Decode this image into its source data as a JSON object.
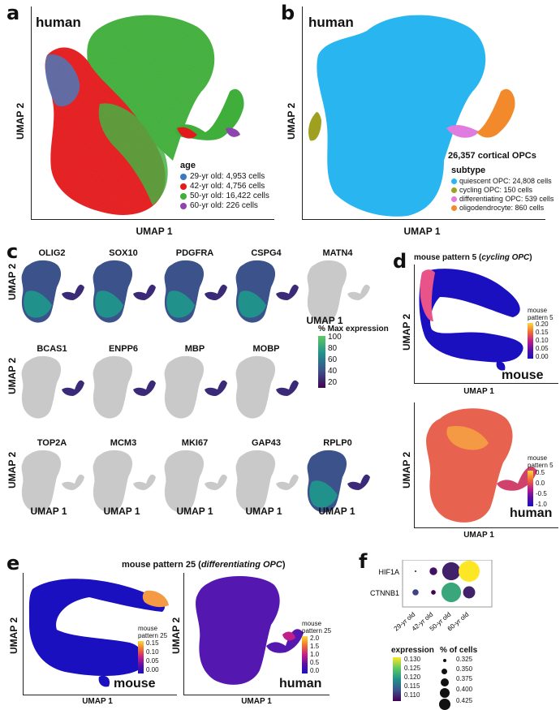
{
  "panels": {
    "a": {
      "letter": "a",
      "species": "human",
      "xlabel": "UMAP 1",
      "ylabel": "UMAP 2",
      "legend_title": "age",
      "legend": [
        {
          "label": "29-yr old: 4,953 cells",
          "color": "#3a78c0"
        },
        {
          "label": "42-yr old: 4,756 cells",
          "color": "#e31a1c"
        },
        {
          "label": "50-yr old: 16,422 cells",
          "color": "#3fae3a"
        },
        {
          "label": "60-yr old: 226 cells",
          "color": "#8e44ad"
        }
      ]
    },
    "b": {
      "letter": "b",
      "species": "human",
      "xlabel": "UMAP 1",
      "ylabel": "UMAP 2",
      "heading": "26,357 cortical OPCs",
      "legend_title": "subtype",
      "legend": [
        {
          "label": "quiescent OPC: 24,808 cells",
          "color": "#29b6f0"
        },
        {
          "label": "cycling OPC: 150 cells",
          "color": "#a0a020"
        },
        {
          "label": "differentiating OPC: 539 cells",
          "color": "#e07be0"
        },
        {
          "label": "oligodendrocyte: 860 cells",
          "color": "#f28a2c"
        }
      ]
    },
    "c": {
      "letter": "c",
      "xlabel": "UMAP 1",
      "ylabel": "UMAP 2",
      "rows": [
        [
          "OLIG2",
          "SOX10",
          "PDGFRA",
          "CSPG4",
          "MATN4"
        ],
        [
          "BCAS1",
          "ENPP6",
          "MBP",
          "MOBP"
        ],
        [
          "TOP2A",
          "MCM3",
          "MKI67",
          "GAP43",
          "RPLP0"
        ]
      ],
      "colorbar_title": "% Max expression",
      "colorbar_ticks": [
        "100",
        "80",
        "60",
        "40",
        "20"
      ]
    },
    "d": {
      "letter": "d",
      "title_prefix": "mouse pattern 5 (",
      "title_italic": "cycling OPC",
      "title_suffix": ")",
      "xlabel": "UMAP 1",
      "ylabel": "UMAP 2",
      "top_species": "mouse",
      "top_cbar_title": "mouse\npattern 5",
      "top_ticks": [
        "0.20",
        "0.15",
        "0.10",
        "0.05",
        "0.00"
      ],
      "bottom_species": "human",
      "bottom_cbar_title": "mouse\npattern 5",
      "bottom_ticks": [
        "0.5",
        "0.0",
        "-0.5",
        "-1.0"
      ]
    },
    "e": {
      "letter": "e",
      "title_prefix": "mouse pattern 25 (",
      "title_italic": "differentiating OPC",
      "title_suffix": ")",
      "xlabel": "UMAP 1",
      "ylabel": "UMAP 2",
      "left_species": "mouse",
      "left_cbar_title": "mouse\npattern 25",
      "left_ticks": [
        "0.15",
        "0.10",
        "0.05",
        "0.00"
      ],
      "right_species": "human",
      "right_cbar_title": "mouse\npattern 25",
      "right_ticks": [
        "2.0",
        "1.5",
        "1.0",
        "0.5",
        "0.0"
      ]
    },
    "f": {
      "letter": "f",
      "genes": [
        "HIF1A",
        "CTNNB1"
      ],
      "ages": [
        "29-yr old",
        "42-yr old",
        "50-yr old",
        "60-yr old"
      ],
      "expression_title": "expression",
      "expression_ticks": [
        "0.130",
        "0.125",
        "0.120",
        "0.115",
        "0.110"
      ],
      "size_title": "% of cells",
      "size_ticks": [
        "0.325",
        "0.350",
        "0.375",
        "0.400",
        "0.425"
      ]
    }
  },
  "chart_data": {
    "type": "scatter",
    "title": "",
    "xlabel": "",
    "ylabel": "",
    "rows": [
      "HIF1A",
      "CTNNB1"
    ],
    "categories": [
      "29-yr old",
      "42-yr old",
      "50-yr old",
      "60-yr old"
    ],
    "size_title": "% of cells",
    "color_title": "expression",
    "points": [
      {
        "gene": "HIF1A",
        "age": "29-yr old",
        "pct": 0.3,
        "expr": 0.11
      },
      {
        "gene": "HIF1A",
        "age": "42-yr old",
        "pct": 0.34,
        "expr": 0.111
      },
      {
        "gene": "HIF1A",
        "age": "50-yr old",
        "pct": 0.41,
        "expr": 0.112
      },
      {
        "gene": "HIF1A",
        "age": "60-yr old",
        "pct": 0.43,
        "expr": 0.133
      },
      {
        "gene": "CTNNB1",
        "age": "29-yr old",
        "pct": 0.33,
        "expr": 0.114
      },
      {
        "gene": "CTNNB1",
        "age": "42-yr old",
        "pct": 0.32,
        "expr": 0.11
      },
      {
        "gene": "CTNNB1",
        "age": "50-yr old",
        "pct": 0.42,
        "expr": 0.122
      },
      {
        "gene": "CTNNB1",
        "age": "60-yr old",
        "pct": 0.37,
        "expr": 0.112
      }
    ]
  }
}
